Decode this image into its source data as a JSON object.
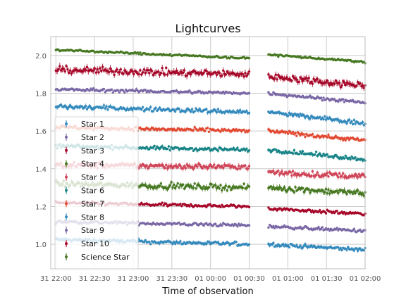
{
  "chart_data": {
    "type": "scatter",
    "title": "Lightcurves",
    "xlabel": "Time of observation",
    "ylabel": "",
    "x_unit": "datetime",
    "x_range": [
      "2021-01-31T21:56:00",
      "2021-02-01T02:00:00"
    ],
    "ylim": [
      0.87,
      2.1
    ],
    "grid": true,
    "legend_position": "left",
    "x_ticks": [
      {
        "value": "2021-01-31T22:00:00",
        "label": "31 22:00"
      },
      {
        "value": "2021-01-31T22:30:00",
        "label": "31 22:30"
      },
      {
        "value": "2021-01-31T23:00:00",
        "label": "31 23:00"
      },
      {
        "value": "2021-01-31T23:30:00",
        "label": "31 23:30"
      },
      {
        "value": "2021-02-01T00:00:00",
        "label": "01 00:00"
      },
      {
        "value": "2021-02-01T00:30:00",
        "label": "01 00:30"
      },
      {
        "value": "2021-02-01T01:00:00",
        "label": "01 01:00"
      },
      {
        "value": "2021-02-01T01:30:00",
        "label": "01 01:30"
      },
      {
        "value": "2021-02-01T02:00:00",
        "label": "01 02:00"
      }
    ],
    "y_ticks": [
      {
        "value": 1.0,
        "label": "1.0"
      },
      {
        "value": 1.2,
        "label": "1.2"
      },
      {
        "value": 1.4,
        "label": "1.4"
      },
      {
        "value": 1.6,
        "label": "1.6"
      },
      {
        "value": 1.8,
        "label": "1.8"
      },
      {
        "value": 2.0,
        "label": "2.0"
      }
    ],
    "observation_segments": [
      {
        "start": "2021-01-31T22:00:00",
        "end": "2021-02-01T00:30:00"
      },
      {
        "start": "2021-02-01T00:45:00",
        "end": "2021-02-01T02:00:00"
      }
    ],
    "series": [
      {
        "name": "Star 1",
        "color": "#348abd",
        "noise": 0.007,
        "segments": [
          [
            1.025,
            1.0
          ],
          [
            1.0,
            0.97
          ]
        ]
      },
      {
        "name": "Star 2",
        "color": "#7a68a6",
        "noise": 0.006,
        "segments": [
          [
            1.12,
            1.1
          ],
          [
            1.095,
            1.07
          ]
        ]
      },
      {
        "name": "Star 3",
        "color": "#a60628",
        "noise": 0.006,
        "segments": [
          [
            1.22,
            1.2
          ],
          [
            1.19,
            1.16
          ]
        ]
      },
      {
        "name": "Star 4",
        "color": "#467821",
        "noise": 0.01,
        "segments": [
          [
            1.32,
            1.3
          ],
          [
            1.3,
            1.27
          ]
        ]
      },
      {
        "name": "Star 5",
        "color": "#cf4457",
        "noise": 0.01,
        "segments": [
          [
            1.42,
            1.41
          ],
          [
            1.38,
            1.36
          ]
        ]
      },
      {
        "name": "Star 6",
        "color": "#188487",
        "noise": 0.007,
        "segments": [
          [
            1.52,
            1.5
          ],
          [
            1.5,
            1.45
          ]
        ]
      },
      {
        "name": "Star 7",
        "color": "#e24a33",
        "noise": 0.007,
        "segments": [
          [
            1.62,
            1.6
          ],
          [
            1.6,
            1.55
          ]
        ]
      },
      {
        "name": "Star 8",
        "color": "#348abd",
        "noise": 0.008,
        "segments": [
          [
            1.73,
            1.7
          ],
          [
            1.7,
            1.64
          ]
        ]
      },
      {
        "name": "Star 9",
        "color": "#7a68a6",
        "noise": 0.006,
        "segments": [
          [
            1.82,
            1.8
          ],
          [
            1.8,
            1.75
          ]
        ]
      },
      {
        "name": "Star 10",
        "color": "#a60628",
        "noise": 0.012,
        "segments": [
          [
            1.925,
            1.9
          ],
          [
            1.89,
            1.84
          ]
        ]
      },
      {
        "name": "Science Star",
        "color": "#467821",
        "noise": 0.004,
        "segments": [
          [
            2.03,
            1.985
          ],
          [
            2.005,
            1.965
          ]
        ]
      }
    ]
  }
}
